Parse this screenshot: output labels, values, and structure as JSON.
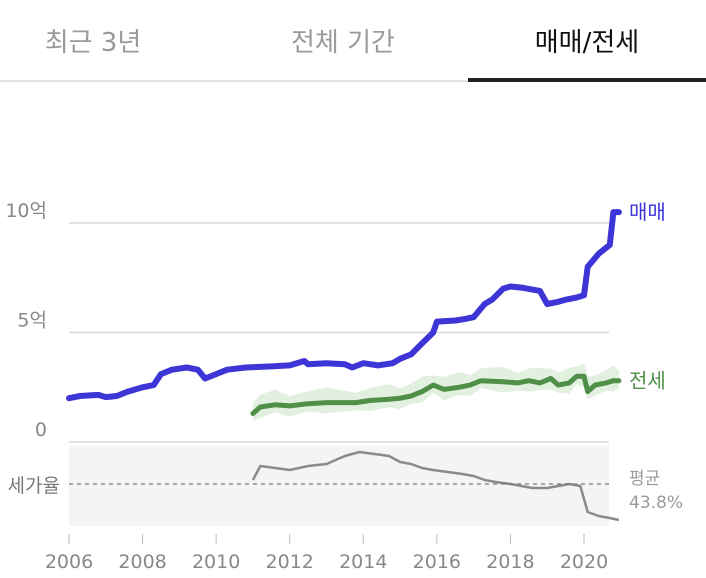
{
  "tabs": [
    {
      "label": "최근 3년",
      "active": false
    },
    {
      "label": "전체 기간",
      "active": false
    },
    {
      "label": "매매/전세",
      "active": true
    }
  ],
  "colors": {
    "sale": "#3d35d6",
    "jeonse": "#4f8f47",
    "ratio": "#8a8a8a",
    "band": "#d6ead3"
  },
  "chart_data": {
    "type": "line",
    "x_ticks": [
      "2006",
      "2008",
      "2010",
      "2012",
      "2014",
      "2016",
      "2018",
      "2020"
    ],
    "y_ticks": [
      {
        "v": 0,
        "label": "0"
      },
      {
        "v": 5,
        "label": "5억"
      },
      {
        "v": 10,
        "label": "10억"
      }
    ],
    "ylim": [
      0,
      10
    ],
    "series": [
      {
        "name": "매매",
        "values": [
          [
            2006,
            2.0
          ],
          [
            2006.3,
            2.1
          ],
          [
            2006.8,
            2.15
          ],
          [
            2007.0,
            2.05
          ],
          [
            2007.3,
            2.1
          ],
          [
            2007.6,
            2.3
          ],
          [
            2008.0,
            2.5
          ],
          [
            2008.3,
            2.6
          ],
          [
            2008.5,
            3.1
          ],
          [
            2008.8,
            3.3
          ],
          [
            2009.2,
            3.4
          ],
          [
            2009.5,
            3.3
          ],
          [
            2009.7,
            2.9
          ],
          [
            2010.0,
            3.1
          ],
          [
            2010.3,
            3.3
          ],
          [
            2010.8,
            3.4
          ],
          [
            2011.5,
            3.45
          ],
          [
            2012.0,
            3.5
          ],
          [
            2012.4,
            3.7
          ],
          [
            2012.5,
            3.55
          ],
          [
            2013.0,
            3.6
          ],
          [
            2013.5,
            3.55
          ],
          [
            2013.7,
            3.4
          ],
          [
            2014.0,
            3.6
          ],
          [
            2014.4,
            3.5
          ],
          [
            2014.8,
            3.6
          ],
          [
            2015.0,
            3.8
          ],
          [
            2015.3,
            4.0
          ],
          [
            2015.6,
            4.5
          ],
          [
            2015.9,
            5.0
          ],
          [
            2016.0,
            5.5
          ],
          [
            2016.5,
            5.55
          ],
          [
            2016.7,
            5.6
          ],
          [
            2017.0,
            5.7
          ],
          [
            2017.3,
            6.3
          ],
          [
            2017.5,
            6.5
          ],
          [
            2017.8,
            7.0
          ],
          [
            2018.0,
            7.1
          ],
          [
            2018.3,
            7.05
          ],
          [
            2018.8,
            6.9
          ],
          [
            2019.0,
            6.3
          ],
          [
            2019.3,
            6.4
          ],
          [
            2019.5,
            6.5
          ],
          [
            2019.8,
            6.6
          ],
          [
            2020.0,
            6.7
          ],
          [
            2020.1,
            8.0
          ],
          [
            2020.4,
            8.6
          ],
          [
            2020.7,
            9.0
          ],
          [
            2020.8,
            10.5
          ],
          [
            2020.95,
            10.5
          ]
        ]
      },
      {
        "name": "전세",
        "values": [
          [
            2011.0,
            1.3
          ],
          [
            2011.2,
            1.6
          ],
          [
            2011.6,
            1.7
          ],
          [
            2012.0,
            1.65
          ],
          [
            2012.5,
            1.75
          ],
          [
            2013.0,
            1.8
          ],
          [
            2013.8,
            1.8
          ],
          [
            2014.2,
            1.9
          ],
          [
            2014.7,
            1.95
          ],
          [
            2015.0,
            2.0
          ],
          [
            2015.3,
            2.1
          ],
          [
            2015.6,
            2.3
          ],
          [
            2015.9,
            2.6
          ],
          [
            2016.2,
            2.4
          ],
          [
            2016.6,
            2.5
          ],
          [
            2016.9,
            2.6
          ],
          [
            2017.2,
            2.8
          ],
          [
            2017.8,
            2.75
          ],
          [
            2018.2,
            2.7
          ],
          [
            2018.5,
            2.8
          ],
          [
            2018.8,
            2.7
          ],
          [
            2019.1,
            2.9
          ],
          [
            2019.3,
            2.6
          ],
          [
            2019.6,
            2.7
          ],
          [
            2019.8,
            3.0
          ],
          [
            2020.0,
            3.0
          ],
          [
            2020.1,
            2.3
          ],
          [
            2020.3,
            2.6
          ],
          [
            2020.6,
            2.7
          ],
          [
            2020.8,
            2.8
          ],
          [
            2020.95,
            2.8
          ]
        ]
      },
      {
        "name": "세가율",
        "values": [
          [
            2011.0,
            0.48
          ],
          [
            2011.2,
            0.55
          ],
          [
            2011.6,
            0.54
          ],
          [
            2012.0,
            0.53
          ],
          [
            2012.5,
            0.55
          ],
          [
            2013.0,
            0.56
          ],
          [
            2013.5,
            0.6
          ],
          [
            2013.9,
            0.62
          ],
          [
            2014.3,
            0.61
          ],
          [
            2014.7,
            0.6
          ],
          [
            2015.0,
            0.57
          ],
          [
            2015.3,
            0.56
          ],
          [
            2015.6,
            0.54
          ],
          [
            2015.9,
            0.53
          ],
          [
            2016.3,
            0.52
          ],
          [
            2016.7,
            0.51
          ],
          [
            2017.0,
            0.5
          ],
          [
            2017.3,
            0.48
          ],
          [
            2017.6,
            0.47
          ],
          [
            2018.0,
            0.46
          ],
          [
            2018.3,
            0.45
          ],
          [
            2018.6,
            0.44
          ],
          [
            2019.0,
            0.44
          ],
          [
            2019.3,
            0.45
          ],
          [
            2019.6,
            0.46
          ],
          [
            2019.9,
            0.45
          ],
          [
            2020.1,
            0.32
          ],
          [
            2020.4,
            0.3
          ],
          [
            2020.7,
            0.29
          ],
          [
            2020.95,
            0.28
          ]
        ]
      }
    ],
    "band_label": "세가율",
    "average_label": "평균",
    "average_value": "43.8%"
  }
}
